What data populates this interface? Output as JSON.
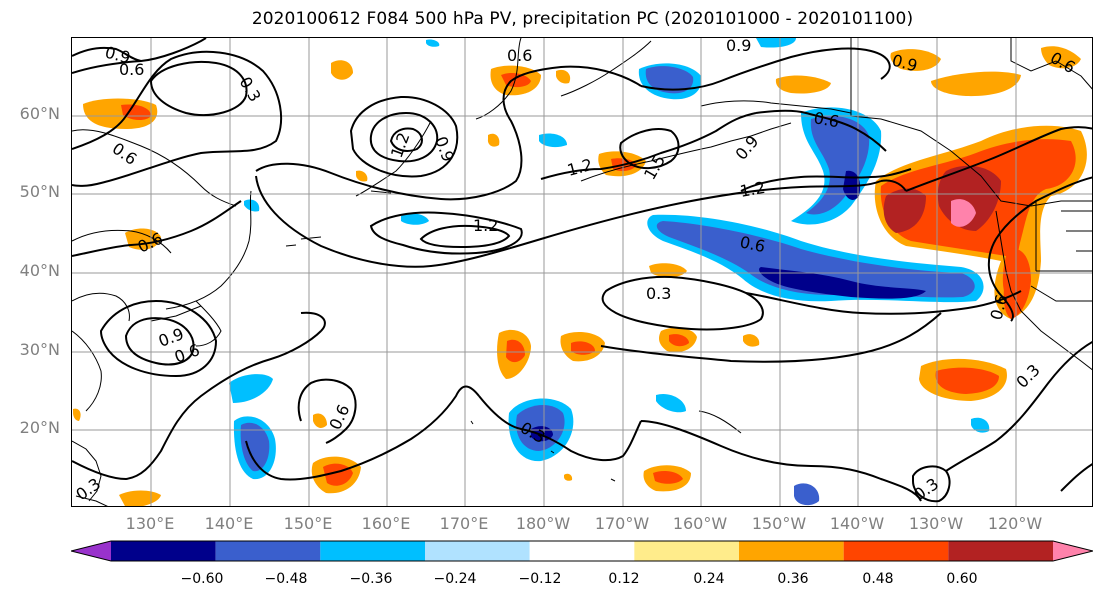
{
  "title": "2020100612 F084 500 hPa PV, precipitation PC (2020101000 - 2020101100)",
  "lat_labels": [
    "60°N",
    "50°N",
    "40°N",
    "30°N",
    "20°N"
  ],
  "lon_labels": [
    "130°E",
    "140°E",
    "150°E",
    "160°E",
    "170°E",
    "180°W",
    "170°W",
    "160°W",
    "150°W",
    "140°W",
    "130°W",
    "120°W"
  ],
  "contour_labels": [
    "0.9",
    "0.6",
    "0.3",
    "0.6",
    "0.6",
    "0.9",
    "0.9",
    "0.6",
    "1.2",
    "0.9",
    "1.2",
    "1.5",
    "0.6",
    "0.9",
    "1.2",
    "1.2",
    "0.6",
    "0.6",
    "0.3",
    "0.6",
    "0.9",
    "0.6",
    "0.3",
    "0.6",
    "0.3",
    "0.3",
    "0.3"
  ],
  "colorbar": {
    "ticks": [
      "−0.60",
      "−0.48",
      "−0.36",
      "−0.24",
      "−0.12",
      "0.12",
      "0.24",
      "0.36",
      "0.48",
      "0.60"
    ],
    "colors": [
      "#9932cc",
      "#00008b",
      "#3a5fcd",
      "#00bfff",
      "#b0e2ff",
      "#ffffff",
      "#ffec8b",
      "#ffa500",
      "#ff4500",
      "#b22222",
      "#ff82ab"
    ]
  }
}
